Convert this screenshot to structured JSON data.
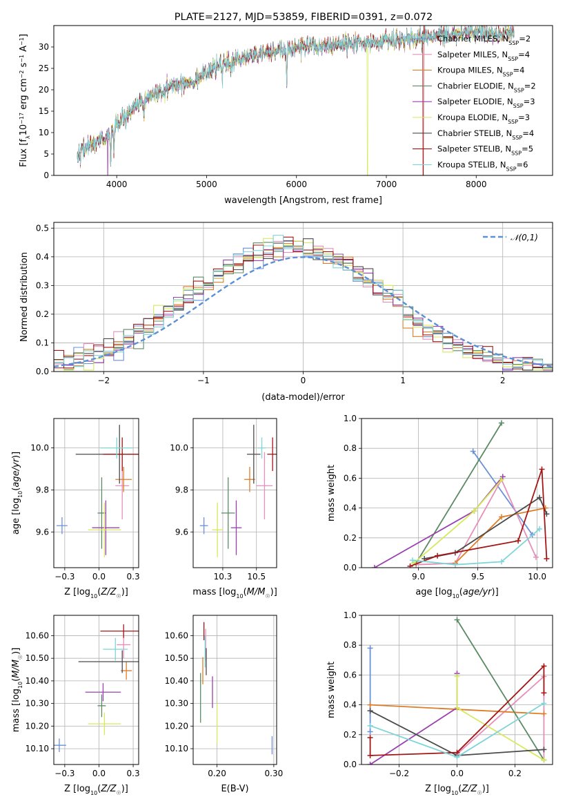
{
  "figure_title": "PLATE=2127, MJD=53859, FIBERID=0391, z=0.072",
  "palette": [
    "#6a8fd8",
    "#e58fb9",
    "#dd7d27",
    "#5a8a62",
    "#9b3fb0",
    "#d6e95a",
    "#4a4a4a",
    "#a31515",
    "#7fd4d8"
  ],
  "legend_spectrum": [
    "Chabrier MILES, N_SSP=2",
    "Salpeter MILES, N_SSP=4",
    "Kroupa MILES, N_SSP=4",
    "Chabrier ELODIE, N_SSP=2",
    "Salpeter ELODIE, N_SSP=3",
    "Kroupa ELODIE, N_SSP=3",
    "Chabrier STELIB, N_SSP=4",
    "Salpeter STELIB, N_SSP=5",
    "Kroupa STELIB, N_SSP=6"
  ],
  "legend_hist": "𝒩(0,1)",
  "chart_data": [
    {
      "id": "spectrum",
      "type": "line",
      "xlabel": "wavelength [Angstrom, rest frame]",
      "ylabel": "Flux [f_λ 10^-17 erg cm^-2 s^-1 A^-1]",
      "xlim": [
        3300,
        8850
      ],
      "ylim": [
        0,
        35
      ],
      "xticks": [
        4000,
        5000,
        6000,
        7000,
        8000
      ],
      "yticks": [
        0,
        5,
        10,
        15,
        20,
        25,
        30
      ],
      "continuum": {
        "x": [
          3550,
          3700,
          3900,
          4000,
          4200,
          4500,
          4800,
          5000,
          5200,
          5500,
          5800,
          6000,
          6300,
          6500,
          6800,
          7000,
          7400,
          7700,
          8000,
          8400
        ],
        "y": [
          5,
          7,
          9,
          12,
          16,
          20,
          22,
          24,
          26,
          28,
          29,
          30,
          30,
          30.5,
          31,
          31.5,
          32,
          33,
          33.5,
          33
        ]
      }
    },
    {
      "id": "residual_hist",
      "type": "histogram",
      "xlabel": "(data-model)/error",
      "ylabel": "Normed distribution",
      "xlim": [
        -2.5,
        2.5
      ],
      "ylim": [
        0,
        0.52
      ],
      "xticks": [
        -2,
        -1,
        0,
        1,
        2
      ],
      "yticks": [
        0.0,
        0.1,
        0.2,
        0.3,
        0.4,
        0.5
      ],
      "bin_width": 0.1,
      "reference": "normal(0,1)"
    },
    {
      "id": "age_vs_Z",
      "type": "errorbar",
      "xlabel": "Z [log10(Z/Z☉)]",
      "ylabel": "age  [log10(age/yr)]",
      "xlim": [
        -0.33,
        0.29
      ],
      "ylim": [
        9.43,
        10.14
      ],
      "xticks": [
        -0.25,
        0.0,
        0.25
      ],
      "yticks": [
        9.6,
        9.8,
        10.0
      ],
      "points": [
        {
          "x": -0.27,
          "y": 9.63,
          "xerr": 0.04,
          "yerr": 0.04
        },
        {
          "x": 0.17,
          "y": 9.82,
          "xerr": 0.05,
          "yerr": 0.16
        },
        {
          "x": 0.18,
          "y": 9.85,
          "xerr": 0.06,
          "yerr": 0.06
        },
        {
          "x": 0.02,
          "y": 9.69,
          "xerr": 0.03,
          "yerr": 0.17
        },
        {
          "x": 0.05,
          "y": 9.62,
          "xerr": 0.1,
          "yerr": 0.13
        },
        {
          "x": 0.04,
          "y": 9.61,
          "xerr": 0.12,
          "yerr": 0.13
        },
        {
          "x": 0.15,
          "y": 9.97,
          "xerr": 0.32,
          "yerr": 0.14
        },
        {
          "x": 0.17,
          "y": 9.97,
          "xerr": 0.14,
          "yerr": 0.08
        },
        {
          "x": 0.13,
          "y": 10.0,
          "xerr": 0.12,
          "yerr": 0.05
        }
      ]
    },
    {
      "id": "age_vs_mass",
      "type": "errorbar",
      "xlabel": "mass [log10(M/M☉)]",
      "ylabel": "",
      "xlim": [
        10.03,
        10.65
      ],
      "ylim": [
        9.43,
        10.14
      ],
      "xticks": [
        10.25,
        10.5
      ],
      "yticks": [
        9.6,
        9.8,
        10.0
      ],
      "points": [
        {
          "x": 10.11,
          "y": 9.63,
          "xerr": 0.03,
          "yerr": 0.04
        },
        {
          "x": 10.56,
          "y": 9.82,
          "xerr": 0.06,
          "yerr": 0.16
        },
        {
          "x": 10.45,
          "y": 9.85,
          "xerr": 0.04,
          "yerr": 0.06
        },
        {
          "x": 10.29,
          "y": 9.69,
          "xerr": 0.05,
          "yerr": 0.17
        },
        {
          "x": 10.35,
          "y": 9.62,
          "xerr": 0.04,
          "yerr": 0.13
        },
        {
          "x": 10.21,
          "y": 9.61,
          "xerr": 0.04,
          "yerr": 0.13
        },
        {
          "x": 10.48,
          "y": 9.97,
          "xerr": 0.05,
          "yerr": 0.14
        },
        {
          "x": 10.62,
          "y": 9.97,
          "xerr": 0.04,
          "yerr": 0.08
        },
        {
          "x": 10.54,
          "y": 10.0,
          "xerr": 0.03,
          "yerr": 0.05
        }
      ]
    },
    {
      "id": "weight_vs_age",
      "type": "line",
      "xlabel": "age  [log10(age/yr)]",
      "ylabel": "mass weight",
      "xlim": [
        8.52,
        10.13
      ],
      "ylim": [
        0,
        1.0
      ],
      "xticks": [
        9.0,
        9.5,
        10.0
      ],
      "yticks": [
        0.0,
        0.2,
        0.4,
        0.6,
        0.8,
        1.0
      ],
      "series": [
        {
          "x": [
            9.46,
            9.96
          ],
          "y": [
            0.78,
            0.22
          ]
        },
        {
          "x": [
            8.98,
            9.31,
            9.7,
            9.99
          ],
          "y": [
            0.02,
            0.03,
            0.59,
            0.07
          ]
        },
        {
          "x": [
            9.31,
            9.7,
            10.07
          ],
          "y": [
            0.03,
            0.34,
            0.4
          ]
        },
        {
          "x": [
            8.98,
            9.7
          ],
          "y": [
            0.03,
            0.97
          ]
        },
        {
          "x": [
            8.63,
            9.47,
            9.71
          ],
          "y": [
            0.0,
            0.38,
            0.61
          ]
        },
        {
          "x": [
            8.96,
            9.47,
            9.7
          ],
          "y": [
            0.03,
            0.38,
            0.59
          ]
        },
        {
          "x": [
            9.05,
            9.31,
            10.02,
            10.08
          ],
          "y": [
            0.06,
            0.1,
            0.47,
            0.36
          ]
        },
        {
          "x": [
            8.93,
            9.16,
            9.84,
            10.04,
            10.08
          ],
          "y": [
            0.01,
            0.08,
            0.18,
            0.66,
            0.06
          ]
        },
        {
          "x": [
            8.95,
            9.31,
            9.7,
            10.02
          ],
          "y": [
            0.05,
            0.02,
            0.04,
            0.26
          ]
        }
      ]
    },
    {
      "id": "mass_vs_Z",
      "type": "errorbar",
      "xlabel": "Z [log10(Z/Z☉)]",
      "ylabel": "mass [log10(M/M☉)]",
      "xlim": [
        -0.33,
        0.29
      ],
      "ylim": [
        10.03,
        10.69
      ],
      "xticks": [
        -0.25,
        0.0,
        0.25
      ],
      "yticks": [
        10.1,
        10.2,
        10.3,
        10.4,
        10.5,
        10.6
      ],
      "points": [
        {
          "x": -0.29,
          "y": 10.115,
          "xerr": 0.05,
          "yerr": 0.03
        },
        {
          "x": 0.18,
          "y": 10.56,
          "xerr": 0.05,
          "yerr": 0.06
        },
        {
          "x": 0.2,
          "y": 10.445,
          "xerr": 0.04,
          "yerr": 0.04
        },
        {
          "x": 0.02,
          "y": 10.29,
          "xerr": 0.03,
          "yerr": 0.05
        },
        {
          "x": 0.03,
          "y": 10.35,
          "xerr": 0.13,
          "yerr": 0.04
        },
        {
          "x": 0.04,
          "y": 10.21,
          "xerr": 0.12,
          "yerr": 0.05
        },
        {
          "x": 0.17,
          "y": 10.485,
          "xerr": 0.32,
          "yerr": 0.05
        },
        {
          "x": 0.18,
          "y": 10.62,
          "xerr": 0.17,
          "yerr": 0.03
        },
        {
          "x": 0.12,
          "y": 10.54,
          "xerr": 0.09,
          "yerr": 0.05
        }
      ]
    },
    {
      "id": "mass_vs_ebv",
      "type": "errorbar",
      "xlabel": "E(B-V)",
      "ylabel": "",
      "xlim": [
        0.158,
        0.305
      ],
      "ylim": [
        10.03,
        10.69
      ],
      "xticks": [
        0.2,
        0.3
      ],
      "yticks": [
        10.1,
        10.2,
        10.3,
        10.4,
        10.5,
        10.6
      ],
      "points": [
        {
          "x": 0.297,
          "y": 10.115,
          "xerr": 0.0,
          "yerr": 0.04
        },
        {
          "x": 0.18,
          "y": 10.56,
          "xerr": 0.0,
          "yerr": 0.07
        },
        {
          "x": 0.175,
          "y": 10.445,
          "xerr": 0.0,
          "yerr": 0.06
        },
        {
          "x": 0.171,
          "y": 10.325,
          "xerr": 0.0,
          "yerr": 0.11
        },
        {
          "x": 0.192,
          "y": 10.35,
          "xerr": 0.0,
          "yerr": 0.07
        },
        {
          "x": 0.2,
          "y": 10.21,
          "xerr": 0.0,
          "yerr": 0.09
        },
        {
          "x": 0.181,
          "y": 10.485,
          "xerr": 0.0,
          "yerr": 0.06
        },
        {
          "x": 0.177,
          "y": 10.62,
          "xerr": 0.0,
          "yerr": 0.04
        },
        {
          "x": 0.179,
          "y": 10.53,
          "xerr": 0.0,
          "yerr": 0.07
        }
      ]
    },
    {
      "id": "weight_vs_Z",
      "type": "line",
      "xlabel": "Z [log10(Z/Z☉)]",
      "ylabel": "mass weight",
      "xlim": [
        -0.33,
        0.33
      ],
      "ylim": [
        0,
        1.0
      ],
      "xticks": [
        -0.2,
        0.0,
        0.2
      ],
      "yticks": [
        0.0,
        0.2,
        0.4,
        0.6,
        0.8,
        1.0
      ],
      "series": [
        {
          "x": [
            -0.3,
            -0.3
          ],
          "y": [
            0.78,
            0.22
          ]
        },
        {
          "x": [
            0.0,
            0.3,
            0.3
          ],
          "y": [
            0.07,
            0.59,
            0.03
          ]
        },
        {
          "x": [
            -0.3,
            0.3
          ],
          "y": [
            0.4,
            0.34
          ]
        },
        {
          "x": [
            0.0,
            0.3
          ],
          "y": [
            0.97,
            0.03
          ]
        },
        {
          "x": [
            -0.3,
            0.0,
            0.0
          ],
          "y": [
            0.0,
            0.38,
            0.61
          ]
        },
        {
          "x": [
            0.0,
            0.0,
            0.3
          ],
          "y": [
            0.59,
            0.38,
            0.03
          ]
        },
        {
          "x": [
            -0.3,
            0.0,
            0.3
          ],
          "y": [
            0.36,
            0.06,
            0.1
          ]
        },
        {
          "x": [
            -0.3,
            -0.3,
            0.0,
            0.3,
            0.3
          ],
          "y": [
            0.18,
            0.06,
            0.08,
            0.66,
            0.48
          ]
        },
        {
          "x": [
            -0.3,
            0.0,
            0.3
          ],
          "y": [
            0.26,
            0.05,
            0.41
          ]
        }
      ]
    }
  ]
}
